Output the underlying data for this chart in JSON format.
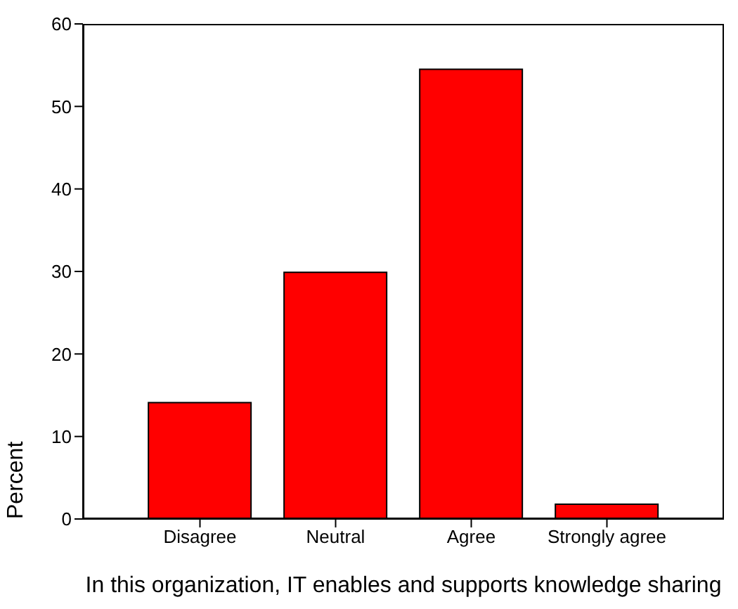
{
  "chart_data": {
    "type": "bar",
    "categories": [
      "Disagree",
      "Neutral",
      "Agree",
      "Strongly agree"
    ],
    "values": [
      14.1,
      29.9,
      54.5,
      1.8
    ],
    "color": "#ff0000",
    "xlabel": "In this organization, IT enables and supports knowledge sharing",
    "ylabel": "Percent",
    "ylim": [
      0,
      60
    ],
    "yticks": [
      0,
      10,
      20,
      30,
      40,
      50,
      60
    ],
    "grid": false
  }
}
